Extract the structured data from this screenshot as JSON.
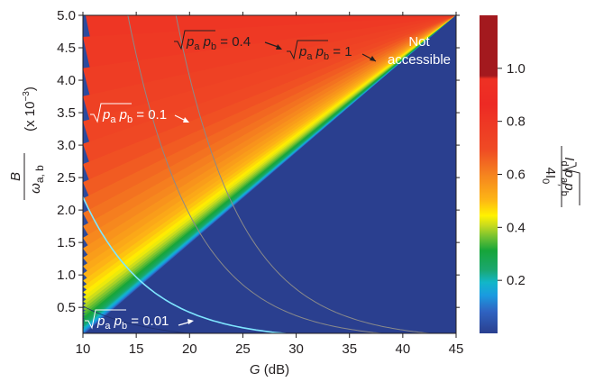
{
  "chart_data": {
    "type": "heatmap",
    "xlabel_var": "G",
    "xlabel_unit": "(dB)",
    "x_ticks": [
      "10",
      "15",
      "20",
      "25",
      "30",
      "35",
      "40",
      "45"
    ],
    "x_tick_values": [
      10,
      15,
      20,
      25,
      30,
      35,
      40,
      45
    ],
    "xlim": [
      10,
      45
    ],
    "ylabel_num": "B",
    "ylabel_den": "ω",
    "ylabel_den_sub": "a, b",
    "ylabel_scale": "(x 10",
    "ylabel_scale_exp": "−3",
    "ylabel_scale_close": ")",
    "y_ticks": [
      "0.5",
      "1.0",
      "1.5",
      "2.0",
      "2.5",
      "3.0",
      "3.5",
      "4.0",
      "4.5",
      "5.0"
    ],
    "y_tick_values": [
      0.5,
      1.0,
      1.5,
      2.0,
      2.5,
      3.0,
      3.5,
      4.0,
      4.5,
      5.0
    ],
    "ylim": [
      0.1,
      5.0
    ],
    "colorbar_ticks": [
      "0.2",
      "0.4",
      "0.6",
      "0.8",
      "1.0"
    ],
    "colorbar_tick_values": [
      0.2,
      0.4,
      0.6,
      0.8,
      1.0
    ],
    "colorbar_label_num": "I",
    "colorbar_label_num_sub": "d",
    "colorbar_label_sqrt_a": "p",
    "colorbar_label_sub_a": "a",
    "colorbar_label_sqrt_b": "p",
    "colorbar_label_sub_b": "b",
    "colorbar_label_den": "4I",
    "colorbar_label_den_sub": "0",
    "colorbar_label_den_sup": "′",
    "contour_levels": [
      0.01,
      0.1,
      0.4,
      1
    ],
    "annotations": {
      "c001": {
        "p": "p",
        "a": "a",
        "b": "b",
        "value": "= 0.01"
      },
      "c01": {
        "p": "p",
        "a": "a",
        "b": "b",
        "value": "= 0.1"
      },
      "c04": {
        "p": "p",
        "a": "a",
        "b": "b",
        "value": "= 0.4"
      },
      "c1": {
        "p": "p",
        "a": "a",
        "b": "b",
        "value": "= 1"
      },
      "not_accessible_line1": "Not",
      "not_accessible_line2": "accessible"
    },
    "colors": {
      "not_accessible": "#a3191e",
      "contour_01": "#7fe6ff",
      "contour_line": "#8a8a8a"
    }
  }
}
